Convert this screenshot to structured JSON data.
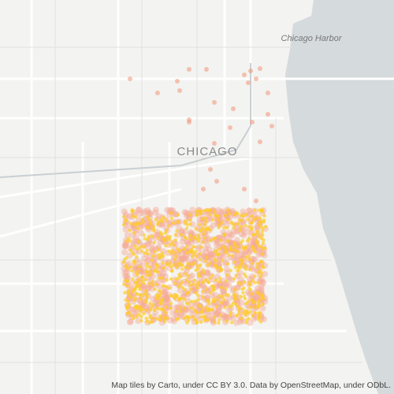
{
  "map": {
    "labels": {
      "harbor": "Chicago Harbor",
      "city": "CHICAGO"
    },
    "attribution": "Map tiles by Carto, under CC BY 3.0. Data by OpenStreetMap, under ODbL."
  }
}
